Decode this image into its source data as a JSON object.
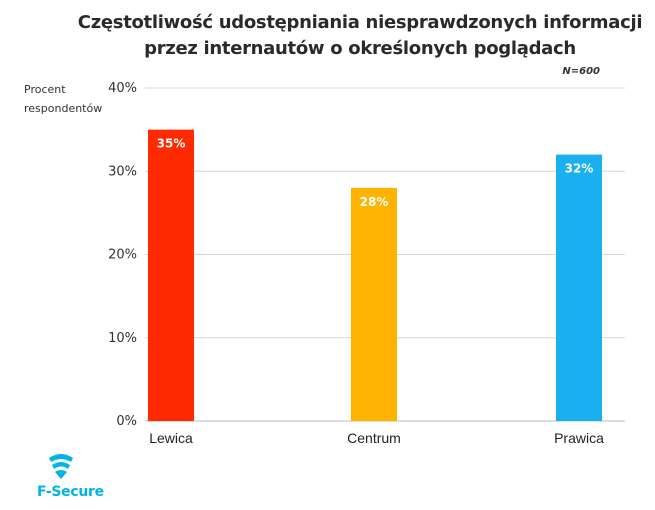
{
  "chart_data": {
    "type": "bar",
    "title_line1": "Częstotliwość udostępniania niesprawdzonych informacji",
    "title_line2": "przez internautów o określonych poglądach",
    "sample_note": "N=600",
    "ylabel_line1": "Procent",
    "ylabel_line2": "respondentów",
    "categories": [
      "Lewica",
      "Centrum",
      "Prawica"
    ],
    "values": [
      35,
      28,
      32
    ],
    "value_labels": [
      "35%",
      "28%",
      "32%"
    ],
    "colors": [
      "#ff2a00",
      "#ffb300",
      "#1ab0f0"
    ],
    "ylim": [
      0,
      40
    ],
    "yticks": [
      0,
      10,
      20,
      30,
      40
    ],
    "ytick_labels": [
      "0%",
      "10%",
      "20%",
      "30%",
      "40%"
    ],
    "grid": true
  },
  "brand": {
    "name": "F-Secure",
    "color": "#00b4e6"
  }
}
